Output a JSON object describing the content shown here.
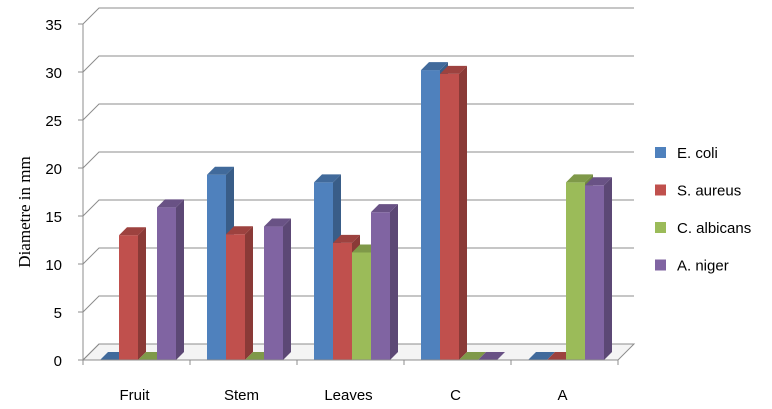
{
  "chart_data": {
    "type": "bar",
    "title": "",
    "xlabel": "",
    "ylabel": "Diametre in mm",
    "ylim": [
      0,
      35
    ],
    "yticks": [
      0,
      5,
      10,
      15,
      20,
      25,
      30,
      35
    ],
    "grid": true,
    "legend_position": "right",
    "style": "3d-clustered-column",
    "categories": [
      "Fruit",
      "Stem",
      "Leaves",
      "C",
      "A"
    ],
    "series": [
      {
        "name": "E. coli",
        "color": "#4F81BD",
        "values": [
          0,
          19.3,
          18.5,
          30.2,
          0
        ]
      },
      {
        "name": "S. aureus",
        "color": "#C0504D",
        "values": [
          13,
          13.1,
          12.2,
          29.8,
          0
        ]
      },
      {
        "name": "C. albicans",
        "color": "#9BBB59",
        "values": [
          0,
          0,
          11.2,
          0,
          18.5
        ]
      },
      {
        "name": "A. niger",
        "color": "#8064A2",
        "values": [
          15.9,
          13.9,
          15.4,
          0,
          18.2
        ]
      }
    ]
  }
}
